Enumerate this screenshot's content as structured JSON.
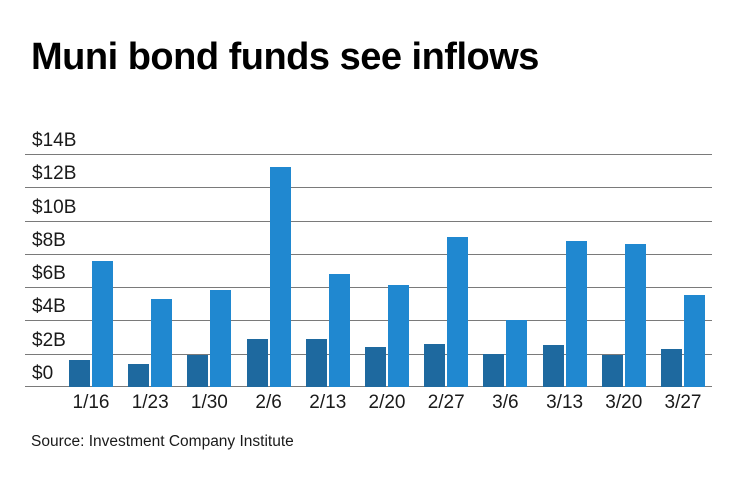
{
  "page": {
    "title": "Muni bond funds see inflows",
    "source": "Source: Investment Company Institute"
  },
  "colors": {
    "dark_bar": "#1e699f",
    "light_bar": "#2088d0",
    "gridline": "#7a7a7a",
    "text": "#1a1a1a",
    "background": "#ffffff"
  },
  "chart_data": {
    "type": "bar",
    "title": "Muni bond funds see inflows",
    "source": "Source: Investment Company Institute",
    "categories": [
      "1/16",
      "1/23",
      "1/30",
      "2/6",
      "2/13",
      "2/20",
      "2/27",
      "3/6",
      "3/13",
      "3/20",
      "3/27"
    ],
    "series": [
      {
        "name": "dark-blue",
        "color": "#1e699f",
        "values": [
          1.6,
          1.4,
          1.9,
          2.9,
          2.9,
          2.4,
          2.6,
          2.0,
          2.5,
          1.9,
          2.3
        ]
      },
      {
        "name": "light-blue",
        "color": "#2088d0",
        "values": [
          7.6,
          5.3,
          5.8,
          13.2,
          6.8,
          6.1,
          9.0,
          4.0,
          8.8,
          8.6,
          5.5
        ]
      }
    ],
    "ylim": [
      0,
      14
    ],
    "yticks": [
      {
        "label": "$0",
        "value": 0
      },
      {
        "label": "$2B",
        "value": 2
      },
      {
        "label": "$4B",
        "value": 4
      },
      {
        "label": "$6B",
        "value": 6
      },
      {
        "label": "$8B",
        "value": 8
      },
      {
        "label": "$10B",
        "value": 10
      },
      {
        "label": "$12B",
        "value": 12
      },
      {
        "label": "$14B",
        "value": 14
      }
    ],
    "grid": true,
    "legend": false,
    "xlabel": "",
    "ylabel": ""
  }
}
